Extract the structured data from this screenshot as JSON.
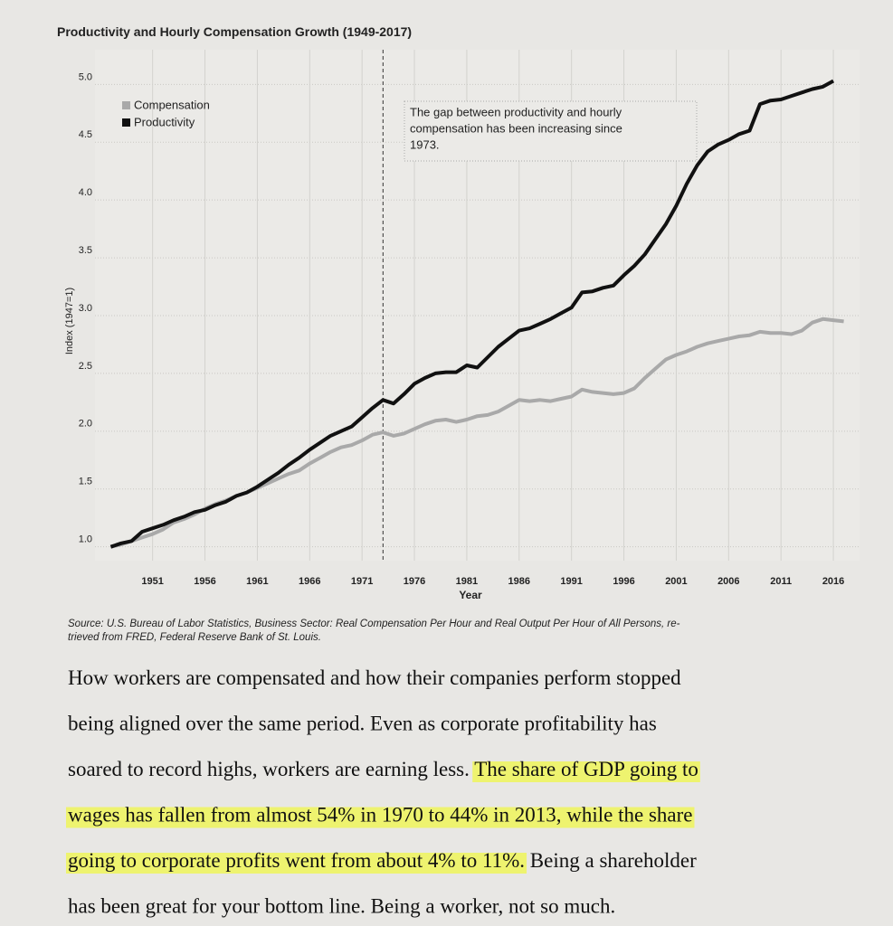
{
  "chart_data": {
    "type": "line",
    "title": "Productivity and Hourly Compensation Growth (1949-2017)",
    "x_label": "Year",
    "y_label": "Index (1947=1)",
    "x": [
      1947,
      1948,
      1949,
      1950,
      1951,
      1952,
      1953,
      1954,
      1955,
      1956,
      1957,
      1958,
      1959,
      1960,
      1961,
      1962,
      1963,
      1964,
      1965,
      1966,
      1967,
      1968,
      1969,
      1970,
      1971,
      1972,
      1973,
      1974,
      1975,
      1976,
      1977,
      1978,
      1979,
      1980,
      1981,
      1982,
      1983,
      1984,
      1985,
      1986,
      1987,
      1988,
      1989,
      1990,
      1991,
      1992,
      1993,
      1994,
      1995,
      1996,
      1997,
      1998,
      1999,
      2000,
      2001,
      2002,
      2003,
      2004,
      2005,
      2006,
      2007,
      2008,
      2009,
      2010,
      2011,
      2012,
      2013,
      2014,
      2015,
      2016,
      2017
    ],
    "series": [
      {
        "name": "Compensation",
        "color": "#a9a9a9",
        "values": [
          1.0,
          1.02,
          1.05,
          1.08,
          1.11,
          1.15,
          1.21,
          1.24,
          1.28,
          1.33,
          1.37,
          1.4,
          1.44,
          1.47,
          1.51,
          1.55,
          1.59,
          1.63,
          1.66,
          1.72,
          1.77,
          1.82,
          1.86,
          1.88,
          1.92,
          1.97,
          1.99,
          1.96,
          1.98,
          2.02,
          2.06,
          2.09,
          2.1,
          2.08,
          2.1,
          2.13,
          2.14,
          2.17,
          2.22,
          2.27,
          2.26,
          2.27,
          2.26,
          2.28,
          2.3,
          2.36,
          2.34,
          2.33,
          2.32,
          2.33,
          2.37,
          2.46,
          2.54,
          2.62,
          2.66,
          2.69,
          2.73,
          2.76,
          2.78,
          2.8,
          2.82,
          2.83,
          2.86,
          2.85,
          2.85,
          2.84,
          2.87,
          2.94,
          2.97,
          2.96,
          2.95
        ]
      },
      {
        "name": "Productivity",
        "color": "#111111",
        "values": [
          1.0,
          1.03,
          1.05,
          1.13,
          1.16,
          1.19,
          1.23,
          1.26,
          1.3,
          1.32,
          1.36,
          1.39,
          1.44,
          1.47,
          1.52,
          1.58,
          1.64,
          1.71,
          1.77,
          1.84,
          1.9,
          1.96,
          2.0,
          2.04,
          2.12,
          2.2,
          2.27,
          2.24,
          2.32,
          2.41,
          2.46,
          2.5,
          2.51,
          2.51,
          2.57,
          2.55,
          2.64,
          2.73,
          2.8,
          2.87,
          2.89,
          2.93,
          2.97,
          3.02,
          3.07,
          3.2,
          3.21,
          3.24,
          3.26,
          3.35,
          3.43,
          3.53,
          3.66,
          3.79,
          3.95,
          4.14,
          4.3,
          4.42,
          4.48,
          4.52,
          4.57,
          4.6,
          4.83,
          4.86,
          4.87,
          4.9,
          4.93,
          4.96,
          4.98,
          5.03,
          null
        ]
      }
    ],
    "xlim": [
      1945.5,
      2018.5
    ],
    "xticks": [
      1951,
      1956,
      1961,
      1966,
      1971,
      1976,
      1981,
      1986,
      1991,
      1996,
      2001,
      2006,
      2011,
      2016
    ],
    "ylim": [
      0.88,
      5.3
    ],
    "yticks": [
      {
        "value": 1,
        "label": "1.0"
      },
      1.5,
      {
        "value": 2,
        "label": "2.0"
      },
      2.5,
      {
        "value": 3,
        "label": "3.0"
      },
      3.5,
      {
        "value": 4,
        "label": "4.0"
      },
      4.5,
      {
        "value": 5,
        "label": "5.0"
      }
    ],
    "grid": true,
    "legend": "upper left",
    "vline": 1973,
    "annotation": [
      "The gap between productivity and hourly",
      "compensation has been increasing since",
      "1973."
    ],
    "source": [
      "Source: U.S. Bureau of Labor Statistics, Business Sector: Real Compensation Per Hour and Real Output Per Hour of All Persons, re-",
      "trieved from FRED, Federal Reserve Bank of St. Louis."
    ]
  },
  "body": {
    "lines": [
      [
        {
          "text": "How workers are compensated and how their companies perform stopped",
          "highlight": false
        }
      ],
      [
        {
          "text": "being aligned over the same period. Even as corporate profitability has",
          "highlight": false
        }
      ],
      [
        {
          "text": "soared to record highs, workers are earning less. ",
          "highlight": false
        },
        {
          "text": "The share of GDP going to",
          "highlight": true
        }
      ],
      [
        {
          "text": "wages has fallen from almost 54% in 1970 to 44% in 2013, while the share",
          "highlight": true
        }
      ],
      [
        {
          "text": "going to corporate profits went from about 4% to 11%.",
          "highlight": true
        },
        {
          "text": " Being a shareholder",
          "highlight": false
        }
      ],
      [
        {
          "text": "has been great for your bottom line. Being a worker, not so much.",
          "highlight": false
        }
      ]
    ]
  }
}
